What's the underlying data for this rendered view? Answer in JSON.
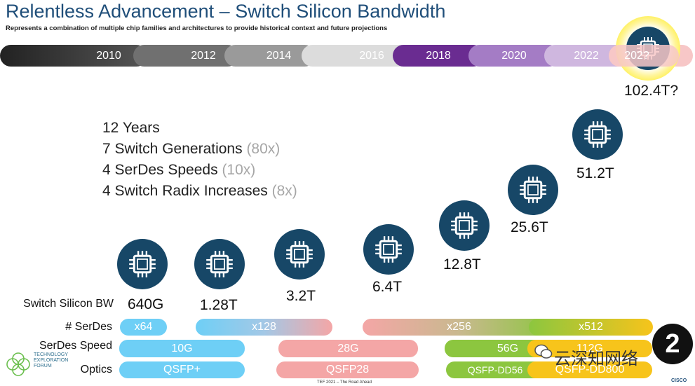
{
  "header": {
    "title": "Relentless Advancement – Switch Silicon Bandwidth",
    "subtitle": "Represents a combination of multiple chip families and architectures to provide historical context and future projections"
  },
  "timeline": [
    "2010",
    "2012",
    "2014",
    "2016",
    "2018",
    "2020",
    "2022",
    "202?"
  ],
  "stats": [
    {
      "text": "12 Years",
      "note": ""
    },
    {
      "text": "7 Switch Generations ",
      "note": "(80x)"
    },
    {
      "text": "4 SerDes Speeds ",
      "note": "(10x)"
    },
    {
      "text": "4 Switch Radix Increases ",
      "note": "(8x)"
    }
  ],
  "bandwidth": [
    "640G",
    "1.28T",
    "3.2T",
    "6.4T",
    "12.8T",
    "25.6T",
    "51.2T",
    "102.4T?"
  ],
  "rows": {
    "bw_label": "Switch Silicon BW",
    "serdes_label": "# SerDes",
    "speed_label": "SerDes Speed",
    "optics_label": "Optics"
  },
  "serdes": [
    "x64",
    "x128",
    "x256",
    "x512"
  ],
  "speeds": [
    "10G",
    "28G",
    "56G",
    "112G"
  ],
  "optics": [
    "QSFP+",
    "QSFP28",
    "QSFP-DD56",
    "QSFP-DD800"
  ],
  "badge": "2",
  "footer": "TEF 2021 – The Road Ahead",
  "watermark": "云深知网络",
  "logo": {
    "line1": "TECHNOLOGY",
    "line2": "EXPLORATION",
    "line3": "FORUM"
  },
  "cisco": "CISCO",
  "colors": {
    "chip": "#174767",
    "title": "#1f4e79",
    "pill_blue": "#6ecff6",
    "pill_pink": "#f4a6a6",
    "pill_green": "#8cc63f",
    "pill_yellow": "#f7c41b"
  }
}
